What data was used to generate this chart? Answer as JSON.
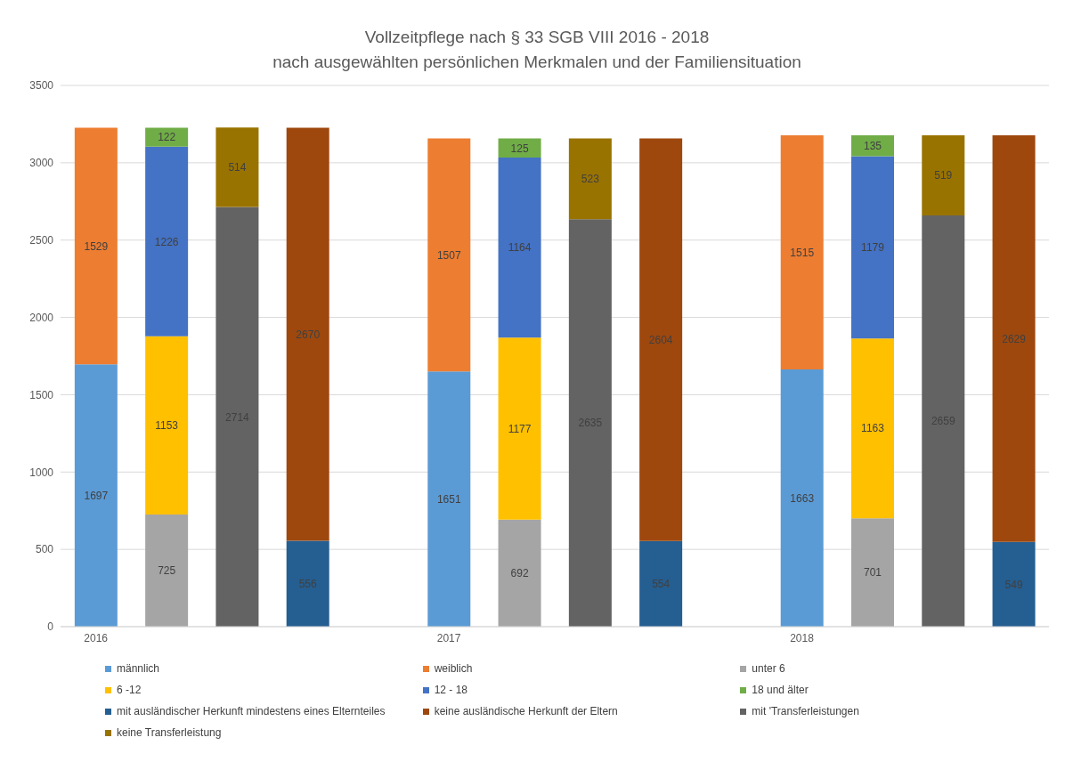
{
  "chart_data": {
    "type": "bar",
    "title": "Vollzeitpflege nach § 33 SGB VIII 2016 - 2018",
    "subtitle": "nach ausgewählten persönlichen Merkmalen und der Familiensituation",
    "categories": [
      "2016",
      null,
      null,
      null,
      null,
      "2017",
      null,
      null,
      null,
      null,
      "2018",
      null,
      null,
      null
    ],
    "stacked": true,
    "data_labels": true,
    "grid": "y",
    "legend": "bottom",
    "ylim": [
      0,
      3500
    ],
    "yticks": [
      0,
      500,
      1000,
      1500,
      2000,
      2500,
      3000,
      3500
    ],
    "series": [
      {
        "name": "männlich",
        "color": "#5b9bd5",
        "values": [
          1697,
          null,
          null,
          null,
          null,
          1651,
          null,
          null,
          null,
          null,
          1663,
          null,
          null,
          null
        ]
      },
      {
        "name": "weiblich",
        "color": "#ed7d31",
        "values": [
          1529,
          null,
          null,
          null,
          null,
          1507,
          null,
          null,
          null,
          null,
          1515,
          null,
          null,
          null
        ]
      },
      {
        "name": "unter 6",
        "color": "#a5a5a5",
        "values": [
          null,
          725,
          null,
          null,
          null,
          null,
          692,
          null,
          null,
          null,
          null,
          701,
          null,
          null
        ]
      },
      {
        "name": "6 -12",
        "color": "#ffc000",
        "values": [
          null,
          1153,
          null,
          null,
          null,
          null,
          1177,
          null,
          null,
          null,
          null,
          1163,
          null,
          null
        ]
      },
      {
        "name": "12 - 18",
        "color": "#4472c4",
        "values": [
          null,
          1226,
          null,
          null,
          null,
          null,
          1164,
          null,
          null,
          null,
          null,
          1179,
          null,
          null
        ]
      },
      {
        "name": "18 und älter",
        "color": "#70ad47",
        "values": [
          null,
          122,
          null,
          null,
          null,
          null,
          125,
          null,
          null,
          null,
          null,
          135,
          null,
          null
        ]
      },
      {
        "name": "mit ausländischer Herkunft mindestens eines Elternteiles",
        "color": "#255e91",
        "values": [
          null,
          null,
          null,
          556,
          null,
          null,
          null,
          null,
          554,
          null,
          null,
          null,
          null,
          549
        ]
      },
      {
        "name": "keine ausländische Herkunft der Eltern",
        "color": "#9e480e",
        "values": [
          null,
          null,
          null,
          2670,
          null,
          null,
          null,
          null,
          2604,
          null,
          null,
          null,
          null,
          2629
        ]
      },
      {
        "name": "mit 'Transferleistungen",
        "color": "#636363",
        "values": [
          null,
          null,
          2714,
          null,
          null,
          null,
          null,
          2635,
          null,
          null,
          null,
          null,
          2659,
          null
        ]
      },
      {
        "name": "keine Transferleistung",
        "color": "#997300",
        "values": [
          null,
          null,
          514,
          null,
          null,
          null,
          null,
          523,
          null,
          null,
          null,
          null,
          519,
          null
        ]
      }
    ]
  }
}
